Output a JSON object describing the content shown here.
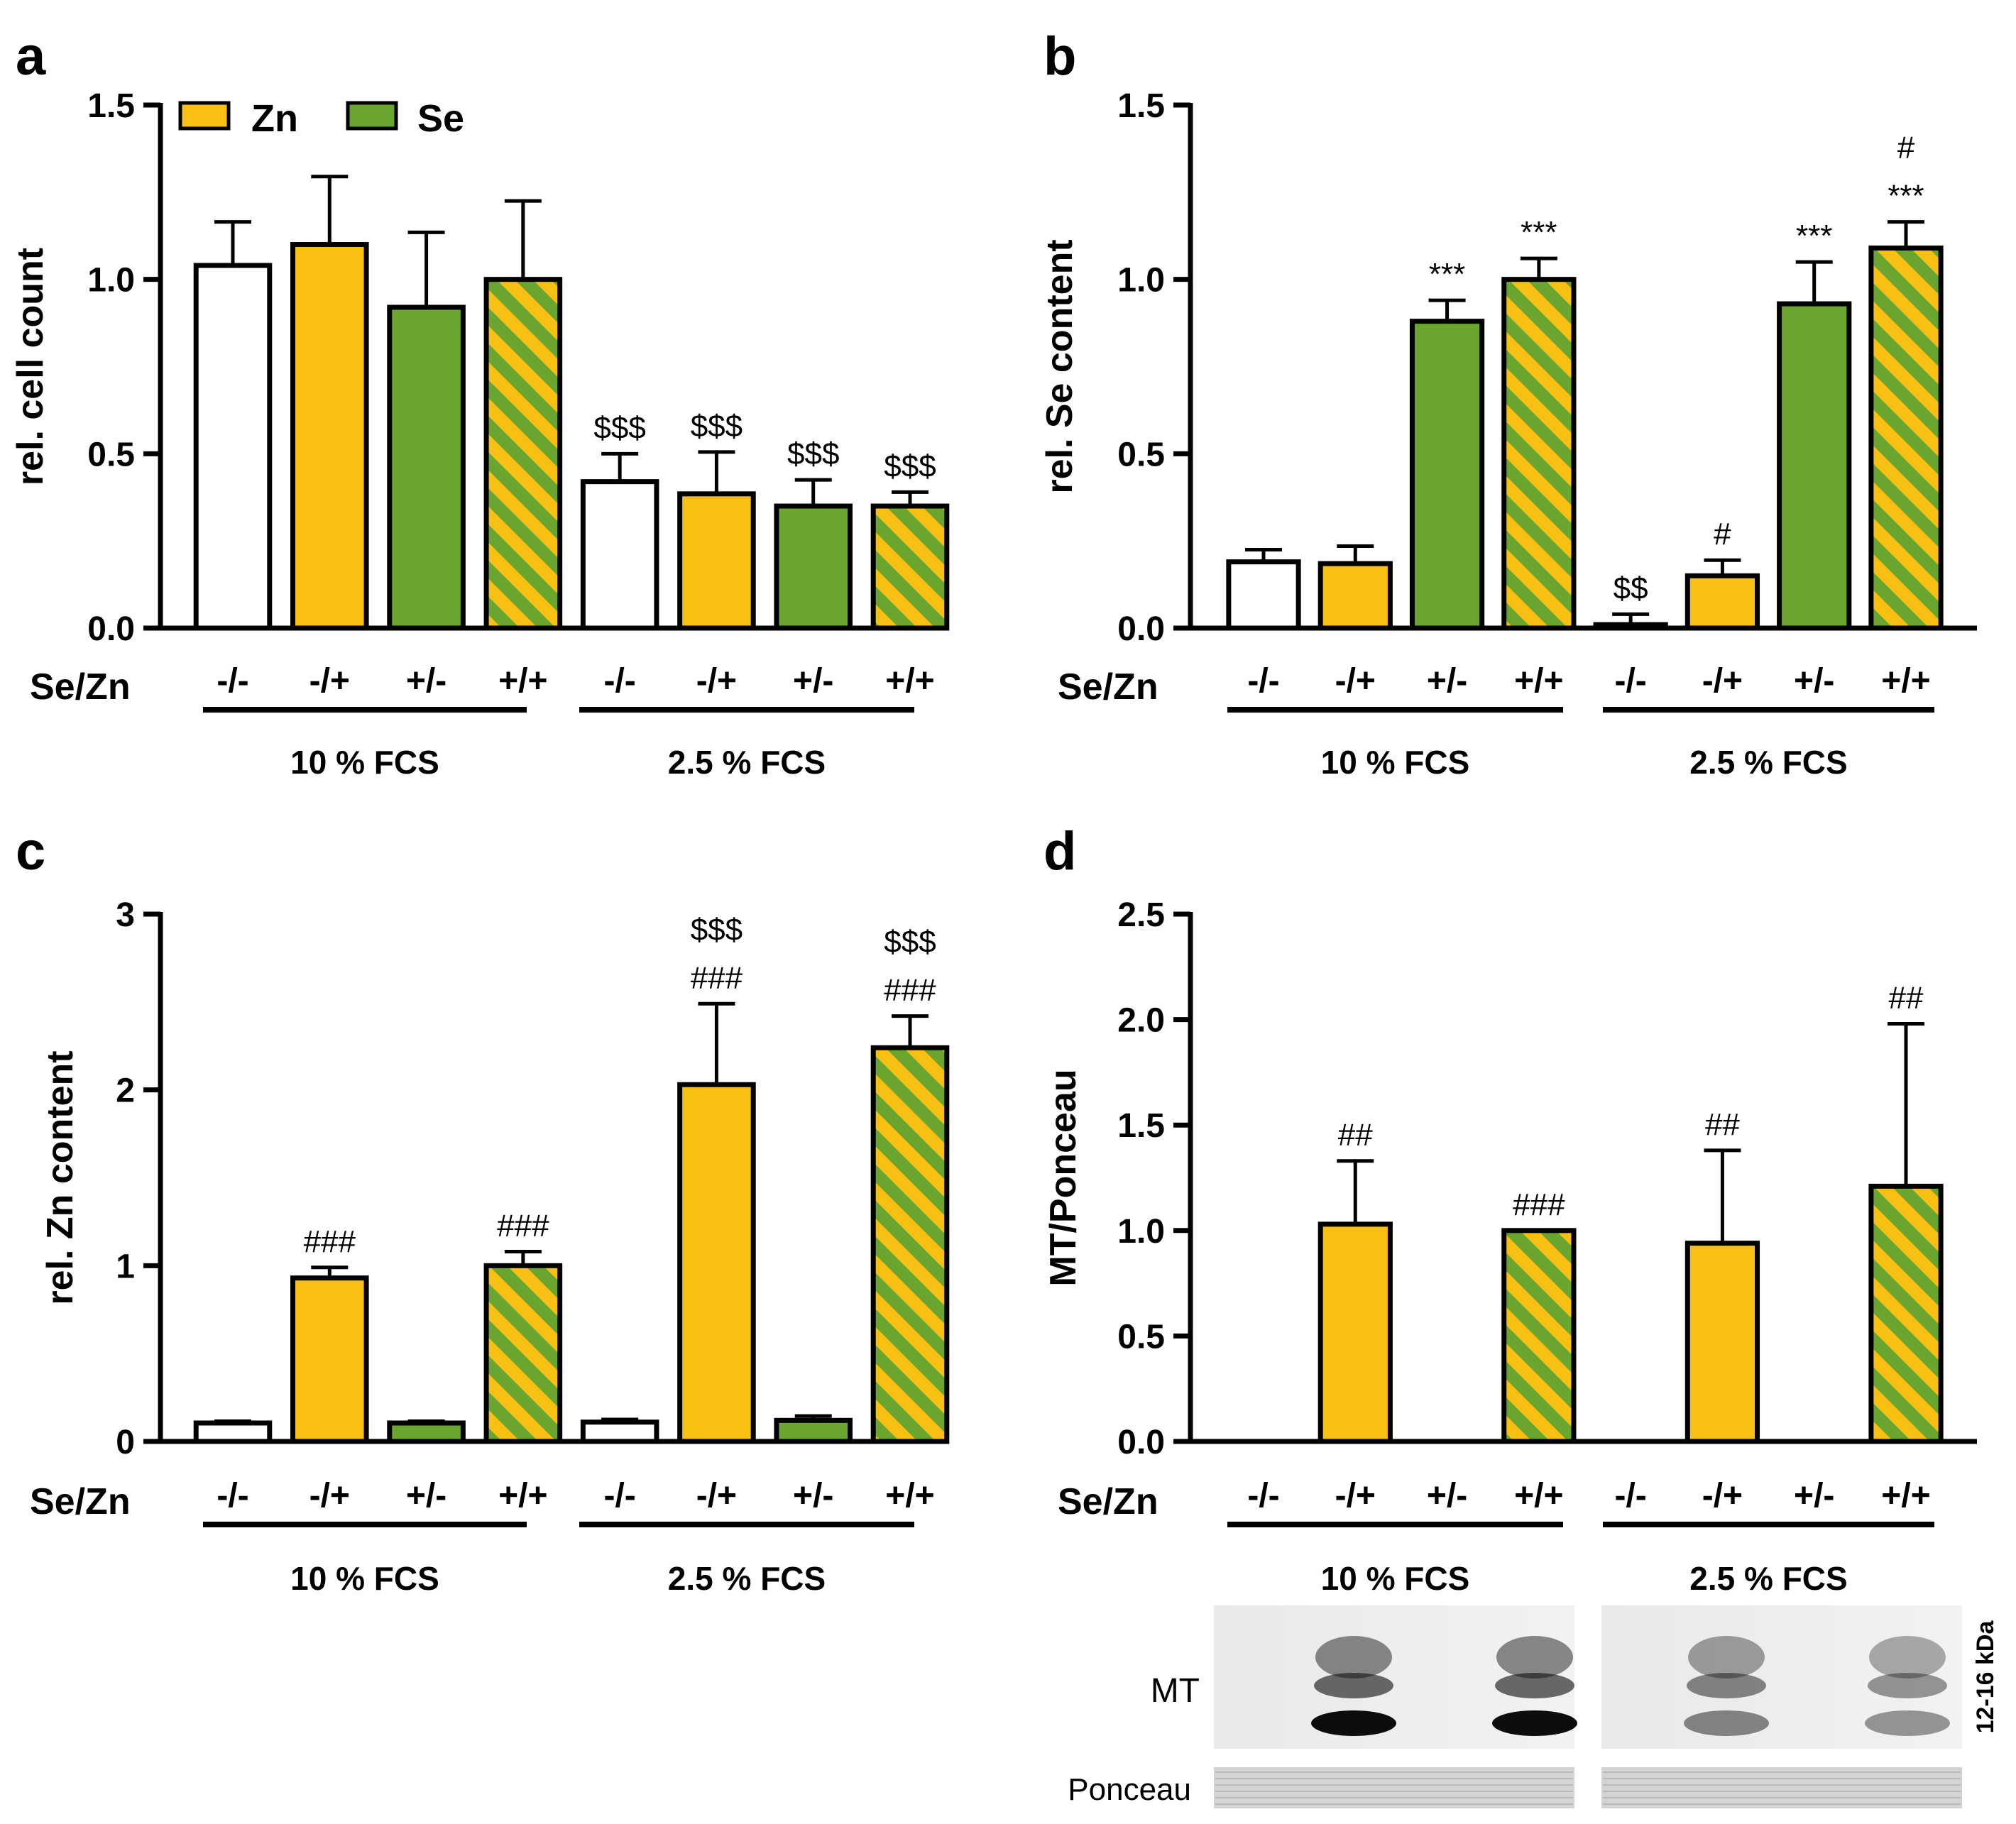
{
  "colors": {
    "zn": "#f8c012",
    "se": "#6aa530",
    "control": "#ffffff",
    "outline": "#000000"
  },
  "legend": {
    "zn_label": "Zn",
    "se_label": "Se"
  },
  "chart_data": [
    {
      "panel": "a",
      "type": "bar",
      "ylabel": "rel. cell count",
      "ylim": [
        0,
        1.5
      ],
      "yticks": [
        "0.0",
        "0.5",
        "1.0",
        "1.5"
      ],
      "row_label": "Se/Zn",
      "groups": [
        "10  % FCS",
        "2.5 % FCS"
      ],
      "categories": [
        "-/-",
        "-/+",
        "+/-",
        "+/+",
        "-/-",
        "-/+",
        "+/-",
        "+/+"
      ],
      "fills": [
        "control",
        "zn",
        "se",
        "both",
        "control",
        "zn",
        "se",
        "both"
      ],
      "values": [
        1.04,
        1.1,
        0.92,
        1.0,
        0.42,
        0.385,
        0.35,
        0.35
      ],
      "errors": [
        0.125,
        0.195,
        0.215,
        0.225,
        0.08,
        0.12,
        0.075,
        0.04
      ],
      "annotations": [
        [],
        [],
        [],
        [],
        [
          "$$$"
        ],
        [
          "$$$"
        ],
        [
          "$$$"
        ],
        [
          "$$$"
        ]
      ]
    },
    {
      "panel": "b",
      "type": "bar",
      "ylabel": "rel. Se content",
      "ylim": [
        0,
        1.5
      ],
      "yticks": [
        "0.0",
        "0.5",
        "1.0",
        "1.5"
      ],
      "row_label": "Se/Zn",
      "groups": [
        "10  % FCS",
        "2.5 % FCS"
      ],
      "categories": [
        "-/-",
        "-/+",
        "+/-",
        "+/+",
        "-/-",
        "-/+",
        "+/-",
        "+/+"
      ],
      "fills": [
        "control",
        "zn",
        "se",
        "both",
        "control",
        "zn",
        "se",
        "both"
      ],
      "values": [
        0.19,
        0.185,
        0.88,
        1.0,
        0.01,
        0.15,
        0.93,
        1.09
      ],
      "errors": [
        0.035,
        0.05,
        0.06,
        0.06,
        0.03,
        0.045,
        0.12,
        0.075
      ],
      "annotations": [
        [],
        [],
        [
          "***"
        ],
        [
          "***"
        ],
        [
          "$$"
        ],
        [
          "#"
        ],
        [
          "***"
        ],
        [
          "***",
          "#"
        ]
      ]
    },
    {
      "panel": "c",
      "type": "bar",
      "ylabel": "rel. Zn content",
      "ylim": [
        0,
        3
      ],
      "yticks": [
        "0",
        "1",
        "2",
        "3"
      ],
      "row_label": "Se/Zn",
      "groups": [
        "10  % FCS",
        "2.5 % FCS"
      ],
      "categories": [
        "-/-",
        "-/+",
        "+/-",
        "+/+",
        "-/-",
        "-/+",
        "+/-",
        "+/+"
      ],
      "fills": [
        "control",
        "zn",
        "se",
        "both",
        "control",
        "zn",
        "se",
        "both"
      ],
      "values": [
        0.105,
        0.93,
        0.105,
        1.0,
        0.11,
        2.03,
        0.12,
        2.24
      ],
      "errors": [
        0.01,
        0.06,
        0.01,
        0.08,
        0.015,
        0.46,
        0.025,
        0.18
      ],
      "annotations": [
        [],
        [
          "###"
        ],
        [],
        [
          "###"
        ],
        [],
        [
          "###",
          "$$$"
        ],
        [],
        [
          "###",
          "$$$"
        ]
      ]
    },
    {
      "panel": "d",
      "type": "bar",
      "ylabel": "MT/Ponceau",
      "ylim": [
        0,
        2.5
      ],
      "yticks": [
        "0.0",
        "0.5",
        "1.0",
        "1.5",
        "2.0",
        "2.5"
      ],
      "row_label": "Se/Zn",
      "groups": [
        "10 % FCS",
        "2.5  % FCS"
      ],
      "categories": [
        "-/-",
        "-/+",
        "+/-",
        "+/+",
        "-/-",
        "-/+",
        "+/-",
        "+/+"
      ],
      "fills": [
        "control",
        "zn",
        "se",
        "both",
        "control",
        "zn",
        "se",
        "both"
      ],
      "values": [
        0,
        1.03,
        0,
        1.0,
        0,
        0.94,
        0,
        1.21
      ],
      "errors": [
        0,
        0.3,
        0,
        0,
        0,
        0.44,
        0,
        0.77
      ],
      "annotations": [
        [],
        [
          "##"
        ],
        [],
        [
          "###"
        ],
        [],
        [
          "##"
        ],
        [],
        [
          "##"
        ]
      ]
    }
  ],
  "blot": {
    "mt_label": "MT",
    "ponceau_label": "Ponceau",
    "size_label": "12-16 kDa",
    "band_intensity": [
      0,
      0.95,
      0,
      0.95,
      0,
      0.75,
      0,
      0.65
    ]
  }
}
